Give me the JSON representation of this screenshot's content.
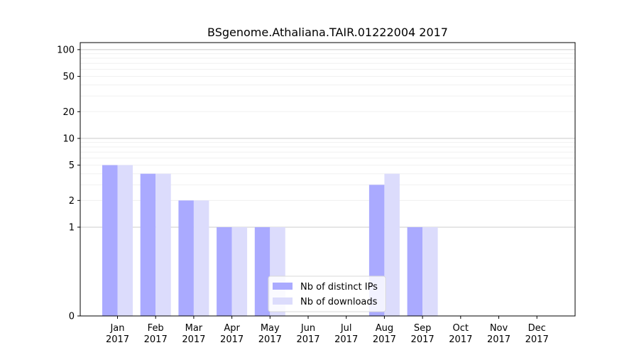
{
  "chart_data": {
    "type": "bar",
    "title": "BSgenome.Athaliana.TAIR.01222004 2017",
    "xlabel": "",
    "ylabel": "",
    "categories": [
      "Jan\n2017",
      "Feb\n2017",
      "Mar\n2017",
      "Apr\n2017",
      "May\n2017",
      "Jun\n2017",
      "Jul\n2017",
      "Aug\n2017",
      "Sep\n2017",
      "Oct\n2017",
      "Nov\n2017",
      "Dec\n2017"
    ],
    "series": [
      {
        "name": "Nb of distinct IPs",
        "values": [
          5,
          4,
          2,
          1,
          1,
          0,
          0,
          3,
          1,
          0,
          0,
          0
        ],
        "color": "#aaaaff"
      },
      {
        "name": "Nb of downloads",
        "values": [
          5,
          4,
          2,
          1,
          1,
          0,
          0,
          4,
          1,
          0,
          0,
          0
        ],
        "color": "#dcdcfc"
      }
    ],
    "yscale": "symlog",
    "yticks": [
      0,
      1,
      2,
      5,
      10,
      20,
      50,
      100
    ],
    "ylim": [
      0,
      120
    ],
    "grid": true,
    "legend_position": "lower-center"
  }
}
